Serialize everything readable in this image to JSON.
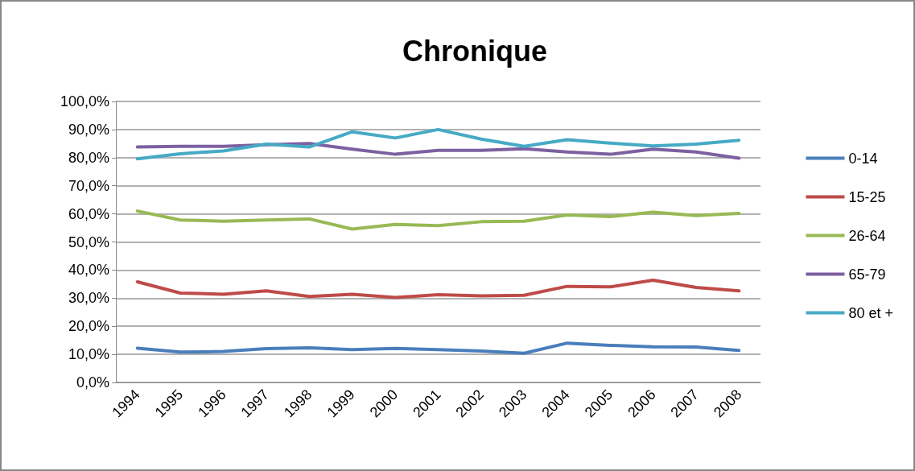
{
  "chart_data": {
    "type": "line",
    "title": "Chronique",
    "categories": [
      "1994",
      "1995",
      "1996",
      "1997",
      "1998",
      "1999",
      "2000",
      "2001",
      "2002",
      "2003",
      "2004",
      "2005",
      "2006",
      "2007",
      "2008"
    ],
    "series": [
      {
        "name": "0-14",
        "color": "#4a7ebb",
        "values": [
          12.2,
          10.8,
          11.0,
          12.0,
          12.3,
          11.7,
          12.1,
          11.7,
          11.2,
          10.4,
          14.0,
          13.2,
          12.7,
          12.6,
          11.4
        ]
      },
      {
        "name": "15-25",
        "color": "#be4b48",
        "values": [
          35.8,
          31.8,
          31.4,
          32.6,
          30.6,
          31.4,
          30.2,
          31.2,
          30.8,
          31.0,
          34.2,
          34.0,
          36.4,
          33.8,
          32.6
        ]
      },
      {
        "name": "26-64",
        "color": "#98b954",
        "values": [
          61.0,
          57.8,
          57.4,
          57.8,
          58.2,
          54.6,
          56.2,
          55.8,
          57.2,
          57.4,
          59.6,
          59.0,
          60.6,
          59.4,
          60.2
        ]
      },
      {
        "name": "65-79",
        "color": "#7d60a0",
        "values": [
          83.8,
          84.0,
          84.0,
          84.6,
          85.0,
          83.0,
          81.2,
          82.6,
          82.6,
          83.2,
          82.0,
          81.2,
          83.0,
          82.0,
          79.8
        ]
      },
      {
        "name": "80 et +",
        "color": "#46aac5",
        "values": [
          79.6,
          81.4,
          82.4,
          84.8,
          83.8,
          89.2,
          87.0,
          90.0,
          86.6,
          84.0,
          86.4,
          85.2,
          84.2,
          84.8,
          86.2
        ]
      }
    ],
    "ylim": [
      0,
      100
    ],
    "yticks": [
      {
        "value": 0,
        "label": "0,0%"
      },
      {
        "value": 10,
        "label": "10,0%"
      },
      {
        "value": 20,
        "label": "20,0%"
      },
      {
        "value": 30,
        "label": "30,0%"
      },
      {
        "value": 40,
        "label": "40,0%"
      },
      {
        "value": 50,
        "label": "50,0%"
      },
      {
        "value": 60,
        "label": "60,0%"
      },
      {
        "value": 70,
        "label": "70,0%"
      },
      {
        "value": 80,
        "label": "80,0%"
      },
      {
        "value": 90,
        "label": "90,0%"
      },
      {
        "value": 100,
        "label": "100,0%"
      }
    ],
    "grid": "y",
    "legend": "right",
    "marker": "none",
    "line_style": "solid"
  }
}
